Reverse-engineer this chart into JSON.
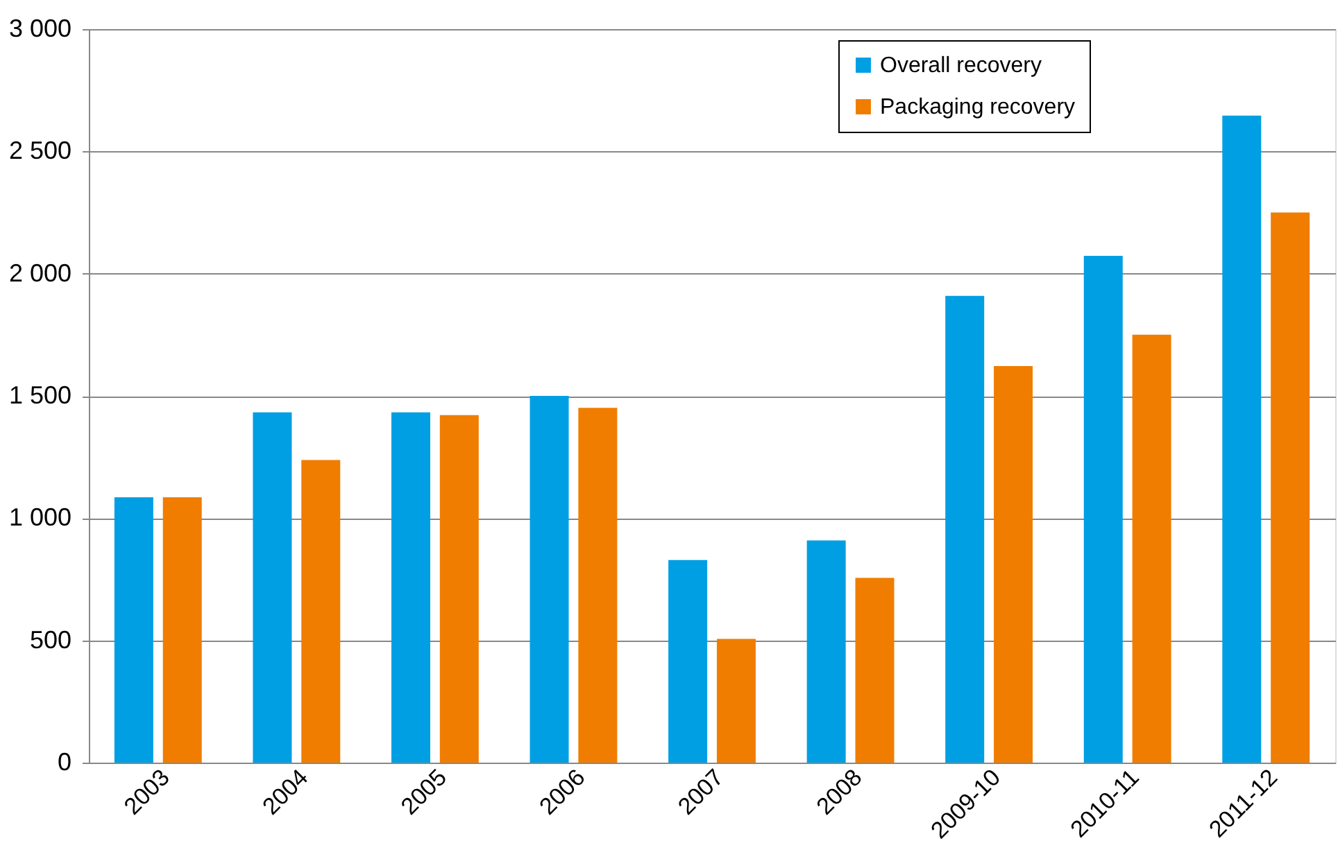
{
  "chart_data": {
    "type": "bar",
    "categories": [
      "2003",
      "2004",
      "2005",
      "2006",
      "2007",
      "2008",
      "2009-10",
      "2010-11",
      "2011-12"
    ],
    "series": [
      {
        "name": "Overall recovery",
        "color": "#009fe3",
        "values": [
          1085,
          1433,
          1433,
          1500,
          829,
          909,
          1909,
          2073,
          2646
        ]
      },
      {
        "name": "Packaging recovery",
        "color": "#f07d00",
        "values": [
          1085,
          1238,
          1421,
          1451,
          506,
          756,
          1622,
          1750,
          2250
        ]
      }
    ],
    "ylim": [
      0,
      3000
    ],
    "yticks": [
      {
        "value": 0,
        "label": "0"
      },
      {
        "value": 500,
        "label": "500"
      },
      {
        "value": 1000,
        "label": "1 000"
      },
      {
        "value": 1500,
        "label": "1 500"
      },
      {
        "value": 2000,
        "label": "2 000"
      },
      {
        "value": 2500,
        "label": "2 500"
      },
      {
        "value": 3000,
        "label": "3 000"
      }
    ],
    "grid": "y",
    "legend": "top right"
  }
}
